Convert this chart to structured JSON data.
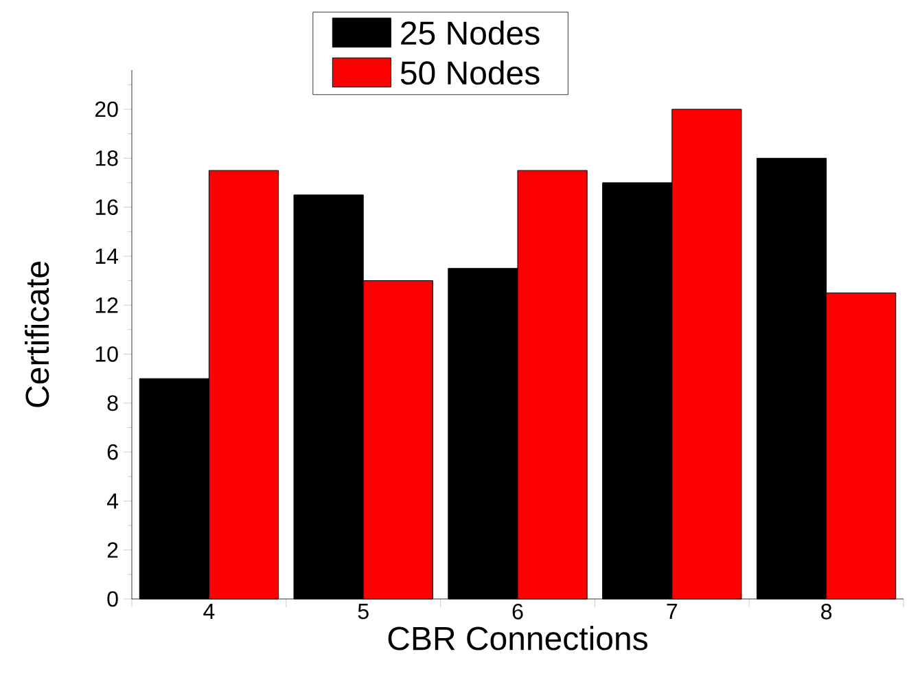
{
  "chart_data": {
    "type": "bar",
    "xlabel": "CBR Connections",
    "ylabel": "Certificate",
    "categories": [
      "4",
      "5",
      "6",
      "7",
      "8"
    ],
    "series": [
      {
        "name": "25 Nodes",
        "color": "#000000",
        "values": [
          9,
          16.5,
          13.5,
          17,
          18
        ]
      },
      {
        "name": "50 Nodes",
        "color": "#ff0000",
        "values": [
          17.5,
          13,
          17.5,
          20,
          12.5
        ]
      }
    ],
    "ylim": [
      0,
      21.6
    ],
    "yticks": [
      0,
      {
        "value": 1,
        "label": null
      },
      2,
      {
        "value": 3,
        "label": null
      },
      4,
      {
        "value": 5,
        "label": null
      },
      6,
      {
        "value": 7,
        "label": null
      },
      8,
      {
        "value": 9,
        "label": null
      },
      10,
      {
        "value": 11,
        "label": null
      },
      12,
      {
        "value": 13,
        "label": null
      },
      14,
      {
        "value": 15,
        "label": null
      },
      16,
      {
        "value": 17,
        "label": null
      },
      18,
      {
        "value": 19,
        "label": null
      },
      20,
      {
        "value": 21,
        "label": null
      }
    ],
    "legend": "top"
  }
}
